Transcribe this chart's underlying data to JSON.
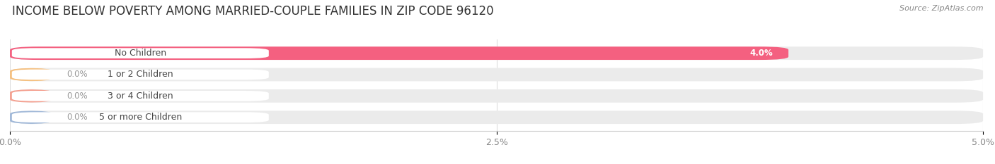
{
  "title": "INCOME BELOW POVERTY AMONG MARRIED-COUPLE FAMILIES IN ZIP CODE 96120",
  "source": "Source: ZipAtlas.com",
  "categories": [
    "No Children",
    "1 or 2 Children",
    "3 or 4 Children",
    "5 or more Children"
  ],
  "values": [
    4.0,
    0.0,
    0.0,
    0.0
  ],
  "bar_colors": [
    "#f46080",
    "#f5c080",
    "#f4a090",
    "#a0b8d8"
  ],
  "track_color": "#ebebeb",
  "xlim": [
    0,
    5.0
  ],
  "xticks": [
    0.0,
    2.5,
    5.0
  ],
  "xticklabels": [
    "0.0%",
    "2.5%",
    "5.0%"
  ],
  "background_color": "#ffffff",
  "title_fontsize": 12,
  "bar_height": 0.62,
  "label_fontsize": 9,
  "val_fontsize": 8.5
}
